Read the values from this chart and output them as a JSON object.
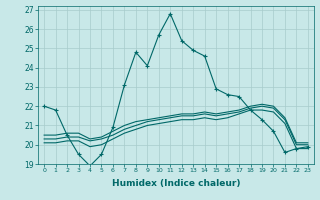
{
  "xlabel": "Humidex (Indice chaleur)",
  "ylabel": "",
  "xlim": [
    -0.5,
    23.5
  ],
  "ylim": [
    19,
    27.2
  ],
  "yticks": [
    19,
    20,
    21,
    22,
    23,
    24,
    25,
    26,
    27
  ],
  "xticks": [
    0,
    1,
    2,
    3,
    4,
    5,
    6,
    7,
    8,
    9,
    10,
    11,
    12,
    13,
    14,
    15,
    16,
    17,
    18,
    19,
    20,
    21,
    22,
    23
  ],
  "background_color": "#c8e8e8",
  "grid_color": "#a8cccc",
  "line_color": "#006868",
  "line1_x": [
    0,
    1,
    2,
    3,
    4,
    5,
    6,
    7,
    8,
    9,
    10,
    11,
    12,
    13,
    14,
    15,
    16,
    17,
    18,
    19,
    20,
    21,
    22,
    23
  ],
  "line1_y": [
    22.0,
    21.8,
    20.5,
    19.5,
    18.9,
    19.5,
    20.9,
    23.1,
    24.8,
    24.1,
    25.7,
    26.8,
    25.4,
    24.9,
    24.6,
    22.9,
    22.6,
    22.5,
    21.8,
    21.3,
    20.7,
    19.6,
    19.8,
    19.9
  ],
  "line2_x": [
    0,
    1,
    2,
    3,
    4,
    5,
    6,
    7,
    8,
    9,
    10,
    11,
    12,
    13,
    14,
    15,
    16,
    17,
    18,
    19,
    20,
    21,
    22,
    23
  ],
  "line2_y": [
    20.3,
    20.3,
    20.4,
    20.4,
    20.2,
    20.3,
    20.5,
    20.8,
    21.0,
    21.2,
    21.3,
    21.4,
    21.5,
    21.5,
    21.6,
    21.5,
    21.6,
    21.7,
    21.9,
    22.0,
    21.9,
    21.3,
    20.0,
    20.0
  ],
  "line3_x": [
    0,
    1,
    2,
    3,
    4,
    5,
    6,
    7,
    8,
    9,
    10,
    11,
    12,
    13,
    14,
    15,
    16,
    17,
    18,
    19,
    20,
    21,
    22,
    23
  ],
  "line3_y": [
    20.5,
    20.5,
    20.6,
    20.6,
    20.3,
    20.4,
    20.7,
    21.0,
    21.2,
    21.3,
    21.4,
    21.5,
    21.6,
    21.6,
    21.7,
    21.6,
    21.7,
    21.8,
    22.0,
    22.1,
    22.0,
    21.4,
    20.1,
    20.1
  ],
  "line4_x": [
    0,
    1,
    2,
    3,
    4,
    5,
    6,
    7,
    8,
    9,
    10,
    11,
    12,
    13,
    14,
    15,
    16,
    17,
    18,
    19,
    20,
    21,
    22,
    23
  ],
  "line4_y": [
    20.1,
    20.1,
    20.2,
    20.2,
    19.9,
    20.0,
    20.3,
    20.6,
    20.8,
    21.0,
    21.1,
    21.2,
    21.3,
    21.3,
    21.4,
    21.3,
    21.4,
    21.6,
    21.8,
    21.8,
    21.7,
    21.1,
    19.8,
    19.8
  ]
}
